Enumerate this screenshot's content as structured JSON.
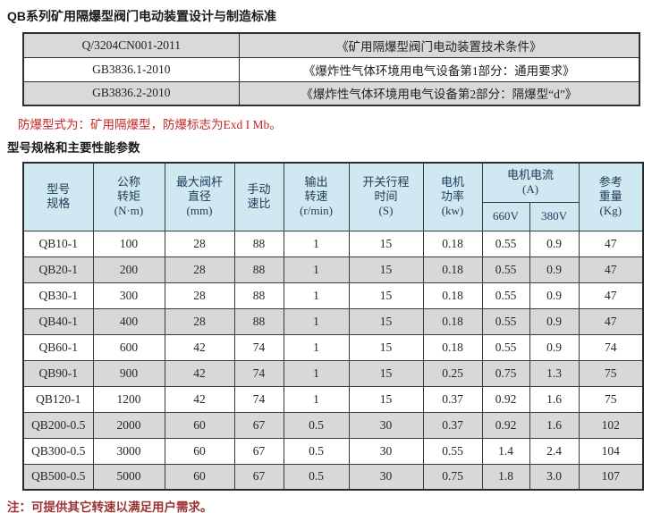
{
  "page": {
    "title": "QB系列矿用隔爆型阀门电动装置设计与制造标准",
    "explosion_note": "防爆型式为：矿用隔爆型，防爆标志为Exd I  Mb。",
    "section_title": "型号规格和主要性能参数",
    "footer_note": "注：可提供其它转速以满足用户需求。"
  },
  "standards_table": {
    "rows": [
      {
        "code": "Q/3204CN001-2011",
        "name": "《矿用隔爆型阀门电动装置技术条件》"
      },
      {
        "code": "GB3836.1-2010",
        "name": "《爆炸性气体环境用电气设备第1部分：通用要求》"
      },
      {
        "code": "GB3836.2-2010",
        "name": "《爆炸性气体环境用电气设备第2部分：隔爆型“d”》"
      }
    ]
  },
  "spec_table": {
    "header": {
      "model": "型号\n规格",
      "torque": "公称\n转矩\n(N·m)",
      "stem_diameter": "最大阀杆\n直径\n(mm)",
      "manual_ratio": "手动\n速比",
      "output_speed": "输出\n转速\n(r/min)",
      "stroke_time": "开关行程\n时间\n(S)",
      "motor_power": "电机\n功率\n(kw)",
      "motor_current": "电机电流\n(A)",
      "v660": "660V",
      "v380": "380V",
      "weight": "参考\n重量\n(Kg)"
    },
    "rows": [
      [
        "QB10-1",
        "100",
        "28",
        "88",
        "1",
        "15",
        "0.18",
        "0.55",
        "0.9",
        "47"
      ],
      [
        "QB20-1",
        "200",
        "28",
        "88",
        "1",
        "15",
        "0.18",
        "0.55",
        "0.9",
        "47"
      ],
      [
        "QB30-1",
        "300",
        "28",
        "88",
        "1",
        "15",
        "0.18",
        "0.55",
        "0.9",
        "47"
      ],
      [
        "QB40-1",
        "400",
        "28",
        "88",
        "1",
        "15",
        "0.18",
        "0.55",
        "0.9",
        "47"
      ],
      [
        "QB60-1",
        "600",
        "42",
        "74",
        "1",
        "15",
        "0.18",
        "0.55",
        "0.9",
        "74"
      ],
      [
        "QB90-1",
        "900",
        "42",
        "74",
        "1",
        "15",
        "0.25",
        "0.75",
        "1.3",
        "75"
      ],
      [
        "QB120-1",
        "1200",
        "42",
        "74",
        "1",
        "15",
        "0.37",
        "0.92",
        "1.6",
        "75"
      ],
      [
        "QB200-0.5",
        "2000",
        "60",
        "67",
        "0.5",
        "30",
        "0.37",
        "0.92",
        "1.6",
        "102"
      ],
      [
        "QB300-0.5",
        "3000",
        "60",
        "67",
        "0.5",
        "30",
        "0.55",
        "1.4",
        "2.4",
        "104"
      ],
      [
        "QB500-0.5",
        "5000",
        "60",
        "67",
        "0.5",
        "30",
        "0.75",
        "1.8",
        "3.0",
        "107"
      ]
    ]
  },
  "colors": {
    "header_bg": "#cfe8f2",
    "header_text": "#203c58",
    "row_shade": "#d8d8d8",
    "note_red": "#c22828",
    "footer_red": "#9c3333"
  }
}
